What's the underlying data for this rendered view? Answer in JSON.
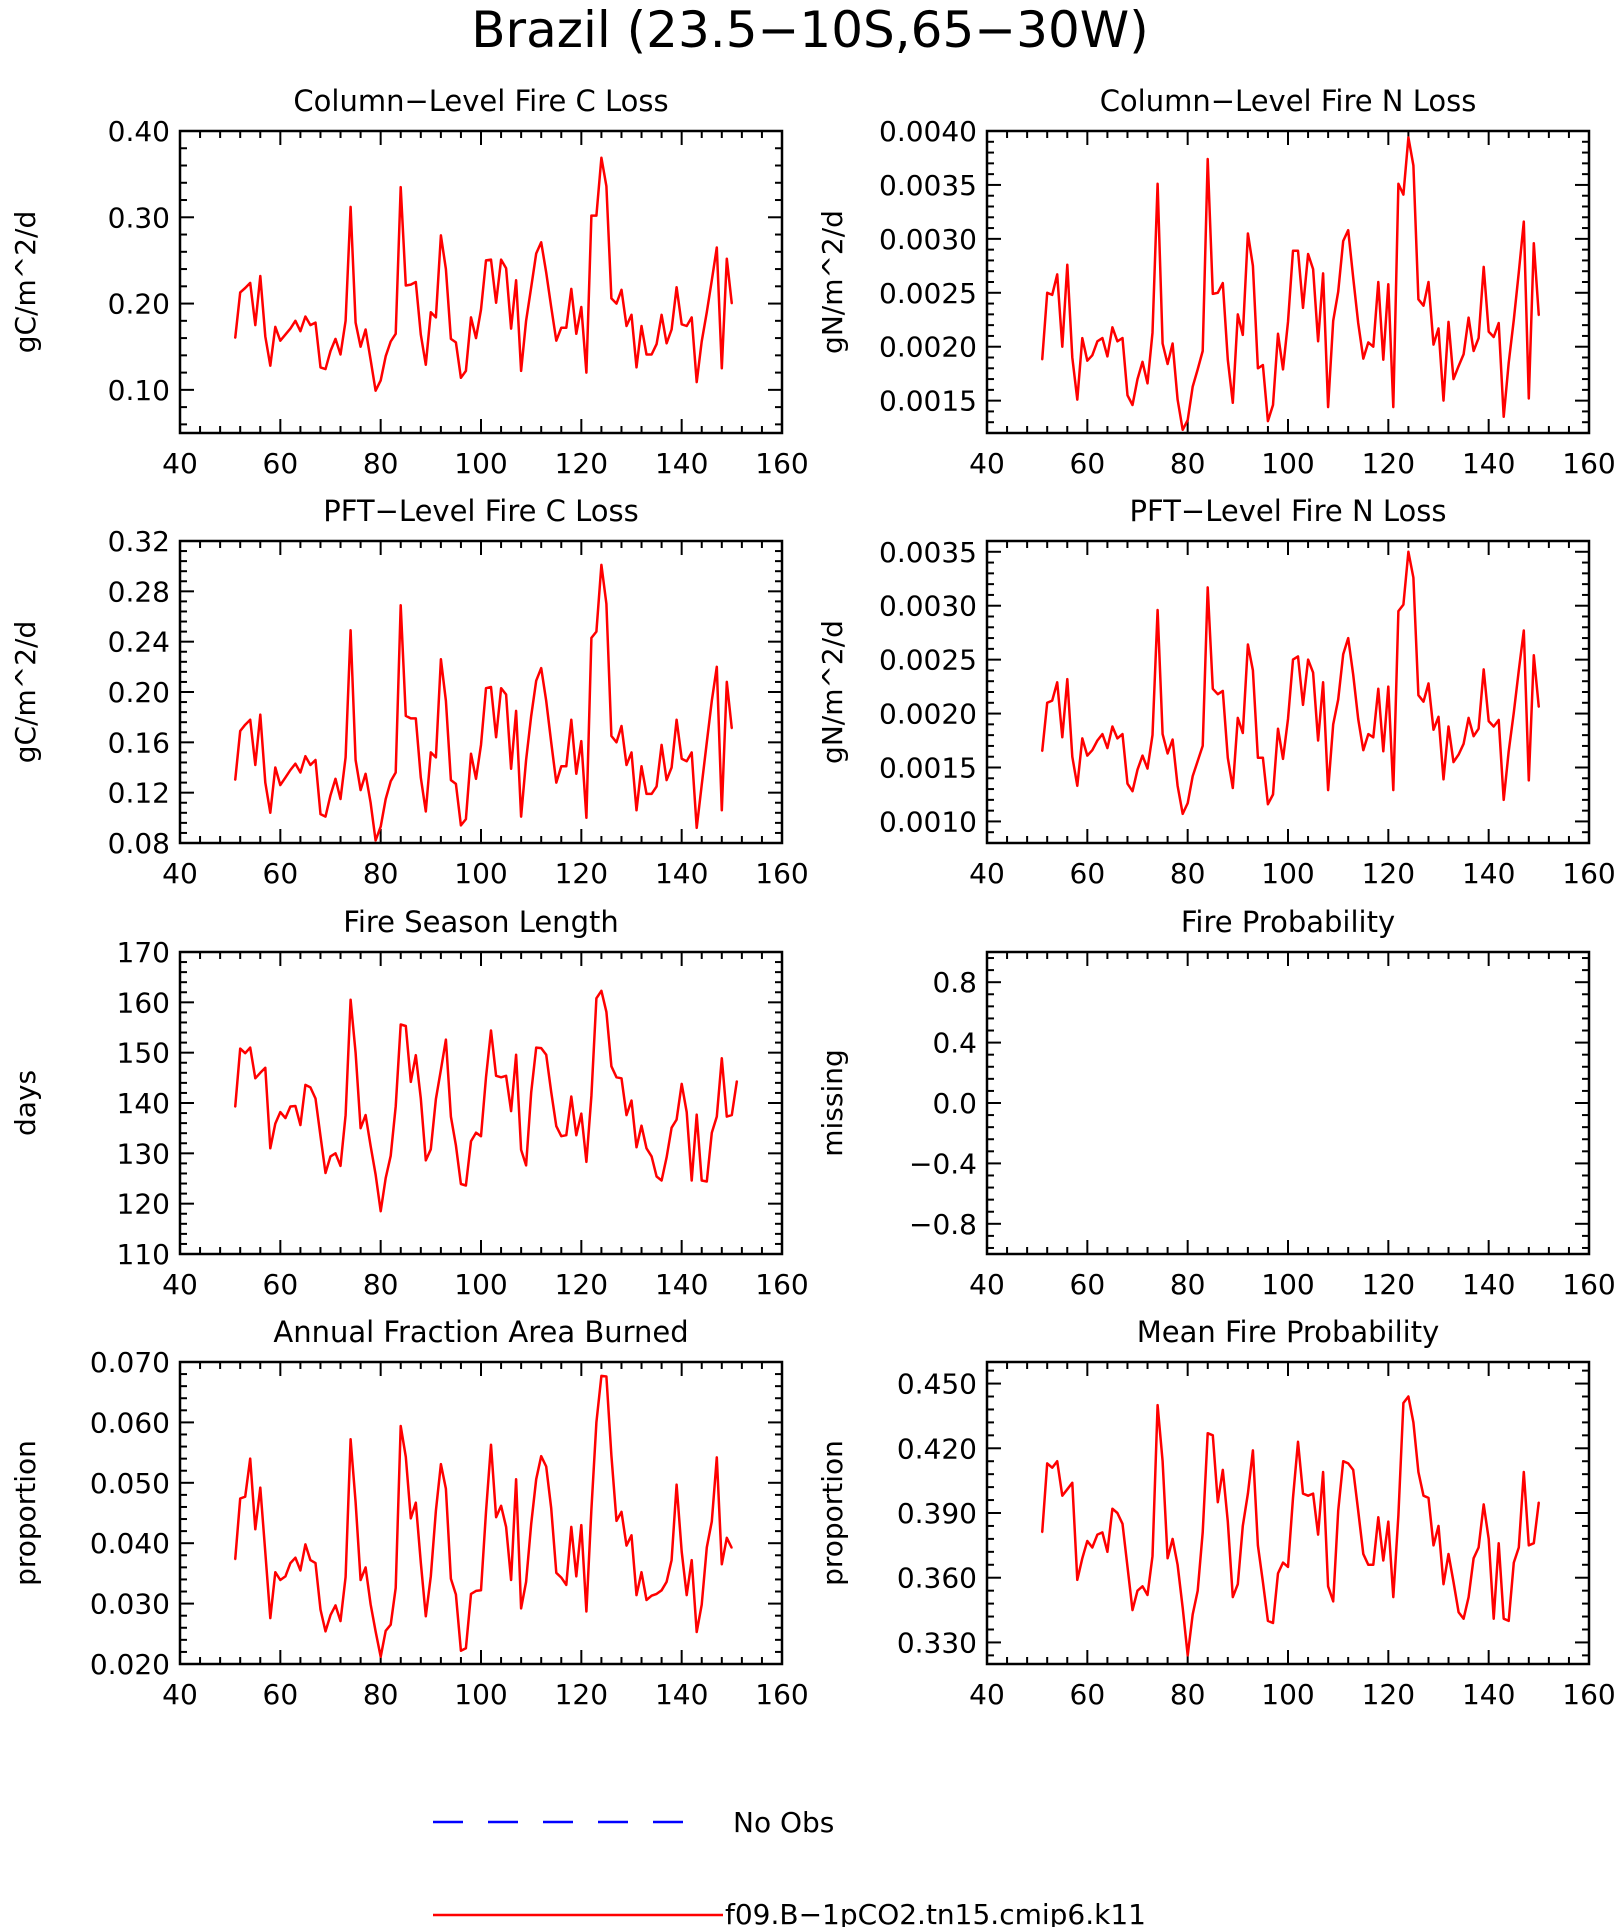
{
  "figure": {
    "title": "Brazil (23.5−10S,65−30W)"
  },
  "colors": {
    "model": "#ff0000",
    "obs": "#0000ff",
    "axes": "#000000"
  },
  "legend": {
    "items": [
      {
        "label": "No Obs",
        "style": "dashed",
        "color": "#0000ff"
      },
      {
        "label": "f09.B−1pCO2.tn15.cmip6.k11",
        "style": "solid",
        "color": "#ff0000"
      }
    ]
  },
  "chart_data": [
    {
      "type": "line",
      "title": "Column−Level Fire C Loss",
      "ylabel": "gC/m^2/d",
      "xlim": [
        40,
        160
      ],
      "xticks": [
        40,
        60,
        80,
        100,
        120,
        140,
        160
      ],
      "ylim": [
        0.05,
        0.4
      ],
      "yticks": [
        0.1,
        0.2,
        0.3,
        0.4
      ],
      "ytick_labels": [
        "0.10",
        "0.20",
        "0.30",
        "0.40"
      ],
      "x_start": 51,
      "series": [
        {
          "values": [
            0.16,
            0.213,
            0.218,
            0.224,
            0.175,
            0.232,
            0.162,
            0.128,
            0.173,
            0.157,
            0.164,
            0.171,
            0.18,
            0.168,
            0.185,
            0.175,
            0.178,
            0.126,
            0.124,
            0.145,
            0.159,
            0.141,
            0.18,
            0.312,
            0.178,
            0.15,
            0.17,
            0.135,
            0.099,
            0.111,
            0.139,
            0.156,
            0.165,
            0.335,
            0.221,
            0.222,
            0.225,
            0.164,
            0.129,
            0.19,
            0.184,
            0.279,
            0.24,
            0.159,
            0.155,
            0.114,
            0.122,
            0.184,
            0.16,
            0.193,
            0.25,
            0.251,
            0.201,
            0.251,
            0.241,
            0.171,
            0.227,
            0.122,
            0.18,
            0.219,
            0.258,
            0.271,
            0.236,
            0.196,
            0.157,
            0.172,
            0.172,
            0.217,
            0.165,
            0.196,
            0.12,
            0.302,
            0.302,
            0.369,
            0.336,
            0.206,
            0.2,
            0.216,
            0.174,
            0.187,
            0.126,
            0.174,
            0.141,
            0.141,
            0.153,
            0.187,
            0.154,
            0.17,
            0.219,
            0.176,
            0.174,
            0.184,
            0.109,
            0.156,
            0.19,
            0.227,
            0.265,
            0.125,
            0.252,
            0.2
          ]
        }
      ]
    },
    {
      "type": "line",
      "title": "Column−Level Fire N Loss",
      "ylabel": "gN/m^2/d",
      "xlim": [
        40,
        160
      ],
      "xticks": [
        40,
        60,
        80,
        100,
        120,
        140,
        160
      ],
      "ylim": [
        0.0012,
        0.004
      ],
      "yticks": [
        0.0015,
        0.002,
        0.0025,
        0.003,
        0.0035,
        0.004
      ],
      "ytick_labels": [
        "0.0015",
        "0.0020",
        "0.0025",
        "0.0030",
        "0.0035",
        "0.0040"
      ],
      "x_start": 51,
      "series": [
        {
          "values": [
            0.00188,
            0.0025,
            0.00248,
            0.00267,
            0.002,
            0.00276,
            0.0019,
            0.00151,
            0.00208,
            0.00187,
            0.00192,
            0.00205,
            0.00208,
            0.00191,
            0.00218,
            0.00205,
            0.00208,
            0.00155,
            0.00146,
            0.0017,
            0.00186,
            0.00166,
            0.00213,
            0.00351,
            0.00203,
            0.00184,
            0.00203,
            0.00151,
            0.00123,
            0.00132,
            0.00163,
            0.00179,
            0.00196,
            0.00374,
            0.00249,
            0.0025,
            0.00259,
            0.00188,
            0.00148,
            0.0023,
            0.00211,
            0.00305,
            0.00275,
            0.0018,
            0.00183,
            0.00131,
            0.00146,
            0.00212,
            0.00179,
            0.00223,
            0.00289,
            0.00289,
            0.00236,
            0.00286,
            0.00272,
            0.00205,
            0.00268,
            0.00144,
            0.00224,
            0.00251,
            0.00298,
            0.00308,
            0.00264,
            0.00222,
            0.00189,
            0.00204,
            0.002,
            0.0026,
            0.00188,
            0.00258,
            0.00144,
            0.00351,
            0.00341,
            0.00394,
            0.00368,
            0.00244,
            0.00238,
            0.0026,
            0.00202,
            0.00217,
            0.0015,
            0.00223,
            0.0017,
            0.00182,
            0.00193,
            0.00227,
            0.00196,
            0.00208,
            0.00274,
            0.00214,
            0.00209,
            0.00222,
            0.00135,
            0.00185,
            0.00225,
            0.00269,
            0.00316,
            0.00152,
            0.00296,
            0.00229
          ]
        }
      ]
    },
    {
      "type": "line",
      "title": "PFT−Level Fire C Loss",
      "ylabel": "gC/m^2/d",
      "xlim": [
        40,
        160
      ],
      "xticks": [
        40,
        60,
        80,
        100,
        120,
        140,
        160
      ],
      "ylim": [
        0.08,
        0.32
      ],
      "yticks": [
        0.08,
        0.12,
        0.16,
        0.2,
        0.24,
        0.28,
        0.32
      ],
      "ytick_labels": [
        "0.08",
        "0.12",
        "0.16",
        "0.20",
        "0.24",
        "0.28",
        "0.32"
      ],
      "x_start": 51,
      "series": [
        {
          "values": [
            0.13,
            0.169,
            0.174,
            0.178,
            0.142,
            0.182,
            0.128,
            0.104,
            0.14,
            0.126,
            0.132,
            0.138,
            0.143,
            0.136,
            0.149,
            0.142,
            0.146,
            0.103,
            0.101,
            0.118,
            0.131,
            0.115,
            0.148,
            0.249,
            0.146,
            0.122,
            0.135,
            0.112,
            0.082,
            0.093,
            0.115,
            0.129,
            0.136,
            0.269,
            0.181,
            0.179,
            0.179,
            0.132,
            0.105,
            0.152,
            0.148,
            0.226,
            0.193,
            0.13,
            0.127,
            0.094,
            0.099,
            0.151,
            0.131,
            0.158,
            0.203,
            0.204,
            0.164,
            0.203,
            0.198,
            0.139,
            0.185,
            0.101,
            0.146,
            0.181,
            0.209,
            0.219,
            0.193,
            0.16,
            0.128,
            0.141,
            0.141,
            0.178,
            0.135,
            0.161,
            0.1,
            0.243,
            0.248,
            0.301,
            0.27,
            0.165,
            0.16,
            0.173,
            0.142,
            0.152,
            0.106,
            0.141,
            0.119,
            0.119,
            0.125,
            0.158,
            0.13,
            0.14,
            0.178,
            0.147,
            0.145,
            0.152,
            0.092,
            0.126,
            0.16,
            0.193,
            0.22,
            0.106,
            0.208,
            0.171
          ]
        }
      ]
    },
    {
      "type": "line",
      "title": "PFT−Level Fire N Loss",
      "ylabel": "gN/m^2/d",
      "xlim": [
        40,
        160
      ],
      "xticks": [
        40,
        60,
        80,
        100,
        120,
        140,
        160
      ],
      "ylim": [
        0.0008,
        0.0036
      ],
      "yticks": [
        0.001,
        0.0015,
        0.002,
        0.0025,
        0.003,
        0.0035
      ],
      "ytick_labels": [
        "0.0010",
        "0.0015",
        "0.0020",
        "0.0025",
        "0.0030",
        "0.0035"
      ],
      "x_start": 51,
      "series": [
        {
          "values": [
            0.00165,
            0.0021,
            0.00212,
            0.00229,
            0.00178,
            0.00232,
            0.0016,
            0.00133,
            0.00177,
            0.00161,
            0.00166,
            0.00175,
            0.00181,
            0.00168,
            0.00188,
            0.00177,
            0.00181,
            0.00135,
            0.00128,
            0.00148,
            0.00161,
            0.00149,
            0.0018,
            0.00296,
            0.00181,
            0.00163,
            0.00176,
            0.00133,
            0.00107,
            0.00117,
            0.00142,
            0.00156,
            0.0017,
            0.00317,
            0.00223,
            0.00218,
            0.00221,
            0.00159,
            0.00131,
            0.00196,
            0.00182,
            0.00264,
            0.0024,
            0.00159,
            0.00159,
            0.00116,
            0.00125,
            0.00186,
            0.00158,
            0.00195,
            0.0025,
            0.00253,
            0.00208,
            0.0025,
            0.00238,
            0.00175,
            0.00229,
            0.00129,
            0.0019,
            0.00213,
            0.00255,
            0.0027,
            0.00236,
            0.00195,
            0.00166,
            0.00181,
            0.00178,
            0.00223,
            0.00165,
            0.00225,
            0.00129,
            0.00295,
            0.00301,
            0.0035,
            0.00326,
            0.00217,
            0.00211,
            0.00228,
            0.00185,
            0.00197,
            0.00139,
            0.00188,
            0.00155,
            0.00162,
            0.00172,
            0.00196,
            0.00179,
            0.00186,
            0.00241,
            0.00193,
            0.00188,
            0.00194,
            0.0012,
            0.00165,
            0.00201,
            0.0024,
            0.00277,
            0.00138,
            0.00254,
            0.00206
          ]
        }
      ]
    },
    {
      "type": "line",
      "title": "Fire Season Length",
      "ylabel": "days",
      "xlim": [
        40,
        160
      ],
      "xticks": [
        40,
        60,
        80,
        100,
        120,
        140,
        160
      ],
      "ylim": [
        110,
        170
      ],
      "yticks": [
        110,
        120,
        130,
        140,
        150,
        160,
        170
      ],
      "ytick_labels": [
        "110",
        "120",
        "130",
        "140",
        "150",
        "160",
        "170"
      ],
      "x_start": 51,
      "series": [
        {
          "values": [
            139.2,
            150.8,
            149.9,
            151.0,
            144.9,
            146.0,
            147.0,
            131.0,
            135.9,
            138.2,
            137.0,
            139.3,
            139.4,
            135.6,
            143.6,
            143.1,
            140.9,
            133.4,
            126.1,
            129.4,
            130.0,
            127.5,
            137.6,
            160.5,
            150.0,
            135.0,
            137.6,
            131.5,
            125.8,
            118.5,
            125.1,
            129.5,
            139.3,
            155.6,
            155.3,
            144.2,
            149.5,
            140.9,
            128.6,
            130.8,
            140.8,
            146.6,
            152.6,
            137.3,
            131.6,
            123.9,
            123.6,
            132.4,
            134.1,
            133.4,
            145.1,
            154.4,
            145.4,
            145.1,
            145.4,
            138.4,
            149.6,
            130.7,
            127.6,
            142.1,
            151.0,
            150.9,
            149.6,
            142.2,
            135.4,
            133.4,
            133.6,
            141.3,
            133.6,
            137.9,
            128.3,
            141.4,
            160.8,
            162.3,
            158.1,
            147.3,
            145.1,
            144.9,
            137.6,
            140.5,
            131.2,
            135.5,
            131.0,
            129.4,
            125.4,
            124.6,
            129.2,
            135.1,
            136.7,
            143.8,
            138.2,
            124.6,
            137.7,
            124.6,
            124.4,
            134.1,
            137.3,
            148.9,
            137.3,
            137.6,
            144.4
          ]
        }
      ]
    },
    {
      "type": "line",
      "title": "Fire Probability",
      "ylabel": "missing",
      "xlim": [
        40,
        160
      ],
      "xticks": [
        40,
        60,
        80,
        100,
        120,
        140,
        160
      ],
      "ylim": [
        -1.0,
        1.0
      ],
      "yticks": [
        -0.8,
        -0.4,
        0.0,
        0.4,
        0.8
      ],
      "ytick_labels": [
        "−0.8",
        "−0.4",
        "0.0",
        "0.4",
        "0.8"
      ],
      "x_start": 51,
      "series": []
    },
    {
      "type": "line",
      "title": "Annual Fraction Area Burned",
      "ylabel": "proportion",
      "xlim": [
        40,
        160
      ],
      "xticks": [
        40,
        60,
        80,
        100,
        120,
        140,
        160
      ],
      "ylim": [
        0.02,
        0.07
      ],
      "yticks": [
        0.02,
        0.03,
        0.04,
        0.05,
        0.06,
        0.07
      ],
      "ytick_labels": [
        "0.020",
        "0.030",
        "0.040",
        "0.050",
        "0.060",
        "0.070"
      ],
      "x_start": 51,
      "series": [
        {
          "values": [
            0.0373,
            0.0474,
            0.0477,
            0.054,
            0.0423,
            0.0492,
            0.0385,
            0.0276,
            0.0352,
            0.0339,
            0.0345,
            0.0367,
            0.0376,
            0.0355,
            0.0398,
            0.0372,
            0.0367,
            0.029,
            0.0254,
            0.0281,
            0.0297,
            0.0271,
            0.0344,
            0.0572,
            0.0468,
            0.0339,
            0.036,
            0.0299,
            0.0254,
            0.0212,
            0.0255,
            0.0265,
            0.0326,
            0.0594,
            0.0543,
            0.0441,
            0.0467,
            0.0368,
            0.0279,
            0.0345,
            0.0454,
            0.0531,
            0.049,
            0.0341,
            0.0315,
            0.0222,
            0.0226,
            0.0316,
            0.0321,
            0.0322,
            0.0452,
            0.0563,
            0.0443,
            0.0462,
            0.0427,
            0.0339,
            0.0506,
            0.0292,
            0.0336,
            0.0432,
            0.0506,
            0.0544,
            0.0527,
            0.0458,
            0.0351,
            0.0343,
            0.0331,
            0.0427,
            0.0345,
            0.043,
            0.0287,
            0.0456,
            0.06,
            0.0677,
            0.0676,
            0.0545,
            0.0437,
            0.0452,
            0.0396,
            0.0413,
            0.0314,
            0.0352,
            0.0306,
            0.0313,
            0.0316,
            0.0322,
            0.0336,
            0.0372,
            0.0497,
            0.0386,
            0.0314,
            0.0372,
            0.0253,
            0.0298,
            0.0393,
            0.0436,
            0.0542,
            0.0365,
            0.0409,
            0.0392
          ]
        }
      ]
    },
    {
      "type": "line",
      "title": "Mean Fire Probability",
      "ylabel": "proportion",
      "xlim": [
        40,
        160
      ],
      "xticks": [
        40,
        60,
        80,
        100,
        120,
        140,
        160
      ],
      "ylim": [
        0.32,
        0.46
      ],
      "yticks": [
        0.33,
        0.36,
        0.39,
        0.42,
        0.45
      ],
      "ytick_labels": [
        "0.330",
        "0.360",
        "0.390",
        "0.420",
        "0.450"
      ],
      "x_start": 51,
      "series": [
        {
          "values": [
            0.381,
            0.413,
            0.411,
            0.414,
            0.398,
            0.401,
            0.404,
            0.359,
            0.369,
            0.377,
            0.374,
            0.38,
            0.381,
            0.372,
            0.392,
            0.39,
            0.385,
            0.365,
            0.345,
            0.354,
            0.356,
            0.352,
            0.37,
            0.44,
            0.414,
            0.369,
            0.378,
            0.366,
            0.346,
            0.324,
            0.343,
            0.354,
            0.381,
            0.427,
            0.426,
            0.395,
            0.41,
            0.386,
            0.351,
            0.357,
            0.384,
            0.399,
            0.419,
            0.375,
            0.358,
            0.34,
            0.339,
            0.362,
            0.367,
            0.365,
            0.397,
            0.423,
            0.399,
            0.398,
            0.399,
            0.38,
            0.409,
            0.356,
            0.349,
            0.391,
            0.414,
            0.413,
            0.41,
            0.391,
            0.371,
            0.366,
            0.366,
            0.388,
            0.368,
            0.386,
            0.351,
            0.389,
            0.441,
            0.444,
            0.432,
            0.409,
            0.398,
            0.397,
            0.375,
            0.384,
            0.357,
            0.371,
            0.358,
            0.344,
            0.341,
            0.351,
            0.369,
            0.374,
            0.394,
            0.378,
            0.341,
            0.376,
            0.341,
            0.34,
            0.367,
            0.374,
            0.409,
            0.375,
            0.376,
            0.395
          ]
        }
      ]
    }
  ]
}
